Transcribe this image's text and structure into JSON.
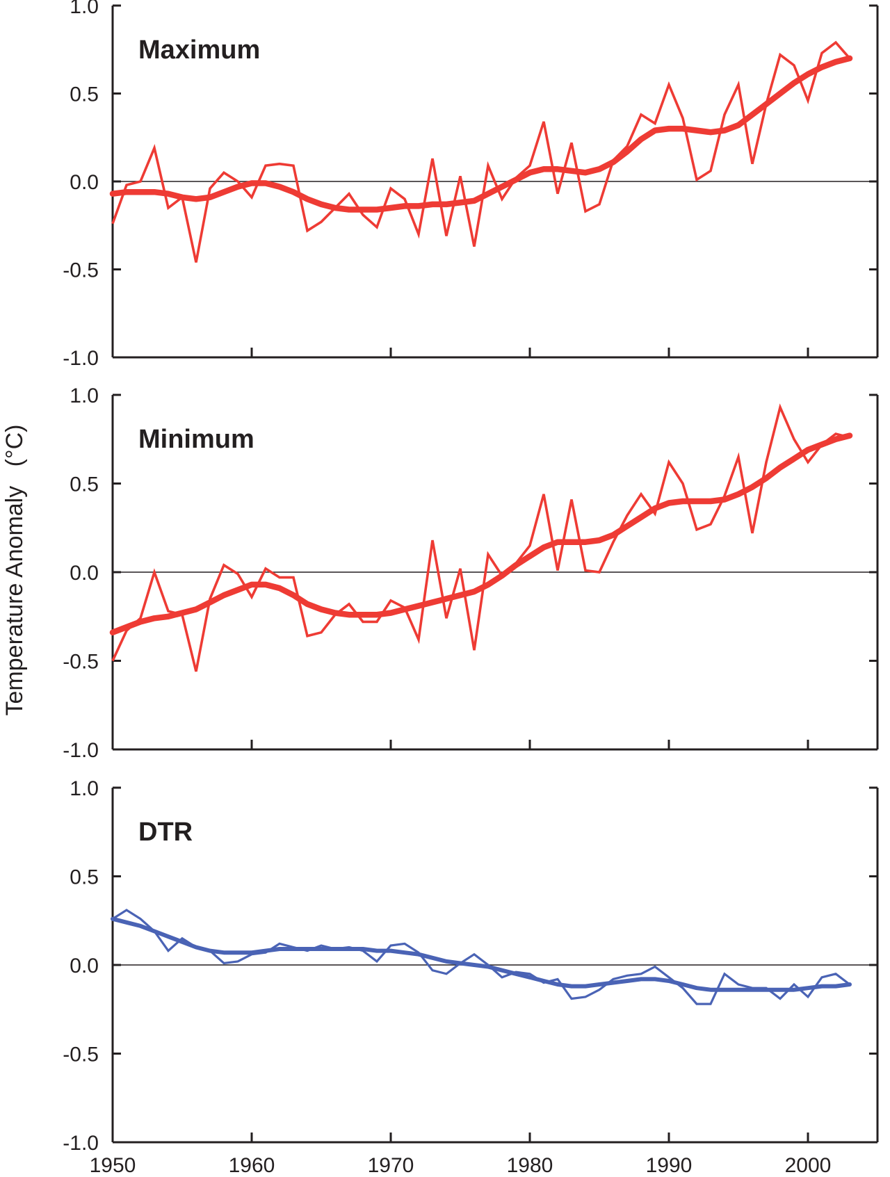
{
  "ylabel": "Temperature Anomaly",
  "ylabel_unit": "(°C)",
  "colors": {
    "warm": "#ee3b34",
    "dtr": "#4a63b5",
    "axis": "#231f20"
  },
  "chart_data": [
    {
      "type": "line",
      "panel_label": "Maximum",
      "xlim": [
        1950,
        2005
      ],
      "ylim": [
        -1.0,
        1.0
      ],
      "x_ticks": [
        1950,
        1960,
        1970,
        1980,
        1990,
        2000
      ],
      "y_ticks": [
        "-1.0",
        "-0.5",
        "0.0",
        "0.5",
        "1.0"
      ],
      "zero_line": true,
      "color": "#ee3b34",
      "x": [
        1950,
        1951,
        1952,
        1953,
        1954,
        1955,
        1956,
        1957,
        1958,
        1959,
        1960,
        1961,
        1962,
        1963,
        1964,
        1965,
        1966,
        1967,
        1968,
        1969,
        1970,
        1971,
        1972,
        1973,
        1974,
        1975,
        1976,
        1977,
        1978,
        1979,
        1980,
        1981,
        1982,
        1983,
        1984,
        1985,
        1986,
        1987,
        1988,
        1989,
        1990,
        1991,
        1992,
        1993,
        1994,
        1995,
        1996,
        1997,
        1998,
        1999,
        2000,
        2001,
        2002,
        2003
      ],
      "annual": [
        -0.24,
        -0.02,
        0.0,
        0.19,
        -0.15,
        -0.09,
        -0.46,
        -0.04,
        0.05,
        0.0,
        -0.09,
        0.09,
        0.1,
        0.09,
        -0.28,
        -0.23,
        -0.15,
        -0.07,
        -0.19,
        -0.26,
        -0.04,
        -0.1,
        -0.3,
        0.13,
        -0.31,
        0.03,
        -0.37,
        0.09,
        -0.1,
        0.02,
        0.09,
        0.34,
        -0.07,
        0.22,
        -0.17,
        -0.13,
        0.12,
        0.2,
        0.38,
        0.33,
        0.55,
        0.36,
        0.01,
        0.06,
        0.38,
        0.55,
        0.1,
        0.44,
        0.72,
        0.66,
        0.46,
        0.73,
        0.79,
        0.7
      ],
      "smoothed": [
        -0.07,
        -0.06,
        -0.06,
        -0.06,
        -0.07,
        -0.09,
        -0.1,
        -0.09,
        -0.06,
        -0.03,
        -0.01,
        -0.01,
        -0.03,
        -0.06,
        -0.1,
        -0.13,
        -0.15,
        -0.16,
        -0.16,
        -0.16,
        -0.15,
        -0.14,
        -0.14,
        -0.13,
        -0.13,
        -0.12,
        -0.11,
        -0.07,
        -0.03,
        0.01,
        0.05,
        0.07,
        0.07,
        0.06,
        0.05,
        0.07,
        0.11,
        0.17,
        0.24,
        0.29,
        0.3,
        0.3,
        0.29,
        0.28,
        0.29,
        0.32,
        0.38,
        0.44,
        0.5,
        0.56,
        0.61,
        0.65,
        0.68,
        0.7
      ]
    },
    {
      "type": "line",
      "panel_label": "Minimum",
      "xlim": [
        1950,
        2005
      ],
      "ylim": [
        -1.0,
        1.0
      ],
      "x_ticks": [
        1950,
        1960,
        1970,
        1980,
        1990,
        2000
      ],
      "y_ticks": [
        "-1.0",
        "-0.5",
        "0.0",
        "0.5",
        "1.0"
      ],
      "zero_line": true,
      "color": "#ee3b34",
      "x": [
        1950,
        1951,
        1952,
        1953,
        1954,
        1955,
        1956,
        1957,
        1958,
        1959,
        1960,
        1961,
        1962,
        1963,
        1964,
        1965,
        1966,
        1967,
        1968,
        1969,
        1970,
        1971,
        1972,
        1973,
        1974,
        1975,
        1976,
        1977,
        1978,
        1979,
        1980,
        1981,
        1982,
        1983,
        1984,
        1985,
        1986,
        1987,
        1988,
        1989,
        1990,
        1991,
        1992,
        1993,
        1994,
        1995,
        1996,
        1997,
        1998,
        1999,
        2000,
        2001,
        2002,
        2003
      ],
      "annual": [
        -0.5,
        -0.33,
        -0.26,
        0.0,
        -0.22,
        -0.24,
        -0.56,
        -0.15,
        0.04,
        -0.01,
        -0.14,
        0.02,
        -0.03,
        -0.03,
        -0.36,
        -0.34,
        -0.24,
        -0.18,
        -0.28,
        -0.28,
        -0.16,
        -0.2,
        -0.38,
        0.18,
        -0.26,
        0.02,
        -0.44,
        0.1,
        -0.02,
        0.05,
        0.15,
        0.44,
        0.01,
        0.41,
        0.01,
        0.0,
        0.17,
        0.32,
        0.44,
        0.33,
        0.62,
        0.5,
        0.24,
        0.27,
        0.43,
        0.65,
        0.22,
        0.62,
        0.93,
        0.75,
        0.62,
        0.72,
        0.78,
        0.76
      ],
      "smoothed": [
        -0.34,
        -0.31,
        -0.28,
        -0.26,
        -0.25,
        -0.23,
        -0.21,
        -0.17,
        -0.13,
        -0.1,
        -0.07,
        -0.07,
        -0.09,
        -0.13,
        -0.18,
        -0.21,
        -0.23,
        -0.24,
        -0.24,
        -0.24,
        -0.23,
        -0.21,
        -0.19,
        -0.17,
        -0.15,
        -0.13,
        -0.11,
        -0.07,
        -0.02,
        0.04,
        0.09,
        0.14,
        0.17,
        0.17,
        0.17,
        0.18,
        0.21,
        0.26,
        0.31,
        0.36,
        0.39,
        0.4,
        0.4,
        0.4,
        0.41,
        0.44,
        0.48,
        0.53,
        0.59,
        0.64,
        0.69,
        0.72,
        0.75,
        0.77
      ]
    },
    {
      "type": "line",
      "panel_label": "DTR",
      "xlim": [
        1950,
        2005
      ],
      "ylim": [
        -1.0,
        1.0
      ],
      "x_ticks": [
        1950,
        1960,
        1970,
        1980,
        1990,
        2000
      ],
      "x_tick_labels": [
        "1950",
        "1960",
        "1970",
        "1980",
        "1990",
        "2000"
      ],
      "y_ticks": [
        "-1.0",
        "-0.5",
        "0.0",
        "0.5",
        "1.0"
      ],
      "zero_line": true,
      "color": "#4a63b5",
      "x": [
        1950,
        1951,
        1952,
        1953,
        1954,
        1955,
        1956,
        1957,
        1958,
        1959,
        1960,
        1961,
        1962,
        1963,
        1964,
        1965,
        1966,
        1967,
        1968,
        1969,
        1970,
        1971,
        1972,
        1973,
        1974,
        1975,
        1976,
        1977,
        1978,
        1979,
        1980,
        1981,
        1982,
        1983,
        1984,
        1985,
        1986,
        1987,
        1988,
        1989,
        1990,
        1991,
        1992,
        1993,
        1994,
        1995,
        1996,
        1997,
        1998,
        1999,
        2000,
        2001,
        2002,
        2003
      ],
      "annual": [
        0.26,
        0.31,
        0.26,
        0.19,
        0.08,
        0.15,
        0.1,
        0.08,
        0.01,
        0.02,
        0.06,
        0.07,
        0.12,
        0.1,
        0.08,
        0.11,
        0.09,
        0.1,
        0.08,
        0.02,
        0.11,
        0.12,
        0.07,
        -0.03,
        -0.05,
        0.01,
        0.06,
        0.0,
        -0.07,
        -0.04,
        -0.05,
        -0.1,
        -0.08,
        -0.19,
        -0.18,
        -0.14,
        -0.08,
        -0.06,
        -0.05,
        -0.01,
        -0.07,
        -0.13,
        -0.22,
        -0.22,
        -0.05,
        -0.11,
        -0.13,
        -0.13,
        -0.19,
        -0.11,
        -0.18,
        -0.07,
        -0.05,
        -0.11
      ],
      "smoothed": [
        0.26,
        0.24,
        0.22,
        0.19,
        0.16,
        0.13,
        0.1,
        0.08,
        0.07,
        0.07,
        0.07,
        0.08,
        0.09,
        0.09,
        0.09,
        0.09,
        0.09,
        0.09,
        0.09,
        0.08,
        0.08,
        0.07,
        0.06,
        0.04,
        0.02,
        0.01,
        0.0,
        -0.01,
        -0.03,
        -0.05,
        -0.07,
        -0.09,
        -0.11,
        -0.12,
        -0.12,
        -0.11,
        -0.1,
        -0.09,
        -0.08,
        -0.08,
        -0.09,
        -0.11,
        -0.13,
        -0.14,
        -0.14,
        -0.14,
        -0.14,
        -0.14,
        -0.14,
        -0.14,
        -0.13,
        -0.12,
        -0.12,
        -0.11
      ]
    }
  ]
}
